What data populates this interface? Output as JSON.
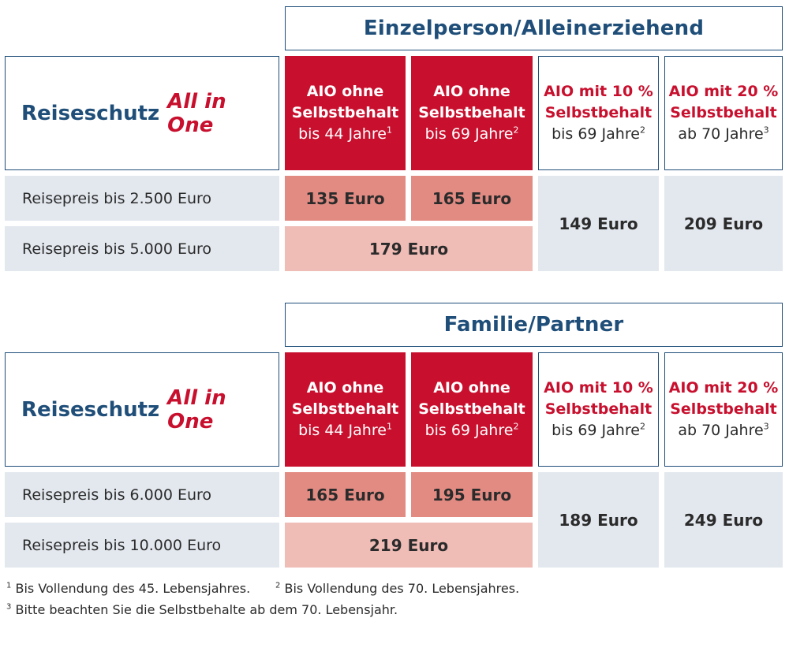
{
  "sections": [
    {
      "header": "Einzelperson/Alleinerziehend",
      "title_main": "Reiseschutz",
      "title_accent": "All in One",
      "columns": [
        {
          "line1": "AIO ohne",
          "line2": "Selbstbehalt",
          "line3": "bis 44 Jahre",
          "sup": "1"
        },
        {
          "line1": "AIO ohne",
          "line2": "Selbstbehalt",
          "line3": "bis 69 Jahre",
          "sup": "2"
        },
        {
          "line1": "AIO mit 10 %",
          "line2": "Selbstbehalt",
          "line3": "bis 69 Jahre",
          "sup": "2"
        },
        {
          "line1": "AIO mit 20 %",
          "line2": "Selbstbehalt",
          "line3": "ab 70 Jahre",
          "sup": "3"
        }
      ],
      "rows": [
        {
          "label": "Reisepreis bis 2.500 Euro",
          "price_1": "135 Euro",
          "price_2": "165 Euro"
        },
        {
          "label": "Reisepreis bis 5.000 Euro",
          "price_merged": "179 Euro"
        }
      ],
      "price_col3": "149 Euro",
      "price_col4": "209 Euro"
    },
    {
      "header": "Familie/Partner",
      "title_main": "Reiseschutz",
      "title_accent": "All in One",
      "columns": [
        {
          "line1": "AIO ohne",
          "line2": "Selbstbehalt",
          "line3": "bis 44 Jahre",
          "sup": "1"
        },
        {
          "line1": "AIO ohne",
          "line2": "Selbstbehalt",
          "line3": "bis 69 Jahre",
          "sup": "2"
        },
        {
          "line1": "AIO mit 10 %",
          "line2": "Selbstbehalt",
          "line3": "bis 69 Jahre",
          "sup": "2"
        },
        {
          "line1": "AIO mit 20 %",
          "line2": "Selbstbehalt",
          "line3": "ab 70 Jahre",
          "sup": "3"
        }
      ],
      "rows": [
        {
          "label": "Reisepreis bis 6.000 Euro",
          "price_1": "165 Euro",
          "price_2": "195 Euro"
        },
        {
          "label": "Reisepreis bis 10.000 Euro",
          "price_merged": "219 Euro"
        }
      ],
      "price_col3": "189 Euro",
      "price_col4": "249 Euro"
    }
  ],
  "footnotes": {
    "n1_mark": "1",
    "n1_text": "Bis Vollendung des 45. Lebensjahres.",
    "n2_mark": "2",
    "n2_text": "Bis Vollendung des 70. Lebensjahres.",
    "n3_mark": "3",
    "n3_text": "Bitte beachten Sie die Selbstbehalte ab dem 70. Lebensjahr."
  },
  "colors": {
    "brand_blue": "#1f4e79",
    "brand_red": "#c8102e",
    "price_mid": "#e28b83",
    "price_light": "#efbcb6",
    "row_grey": "#e3e8ef"
  }
}
